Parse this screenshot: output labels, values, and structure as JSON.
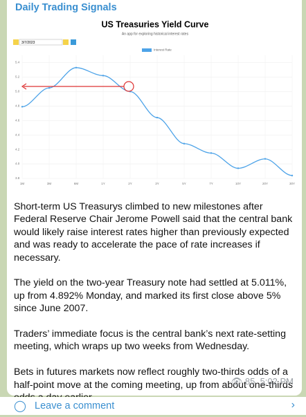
{
  "header": {
    "channel": "Daily Trading Signals"
  },
  "chart_data": {
    "type": "line",
    "title": "US Treasuries Yield Curve",
    "subtitle": "An app for exploring historical interest rates",
    "date": "3/7/2023",
    "categories": [
      "1M",
      "3M",
      "6M",
      "1Y",
      "2Y",
      "3Y",
      "5Y",
      "7Y",
      "10Y",
      "20Y",
      "30Y"
    ],
    "series": [
      {
        "name": "Interest Rate",
        "color": "#4da3e8",
        "values": [
          4.79,
          5.05,
          5.33,
          5.22,
          5.0,
          4.64,
          4.28,
          4.15,
          3.94,
          4.07,
          3.84
        ]
      }
    ],
    "ylim": [
      3.8,
      5.5
    ],
    "yticks": [
      3.8,
      {
        "value": 4,
        "label": "4.0"
      },
      4.2,
      4.4,
      4.6,
      4.8,
      {
        "value": 5,
        "label": "5.0"
      },
      5.2,
      5.4
    ],
    "grid": true
  },
  "message": {
    "paragraphs": [
      "Short-term US Treasurys climbed to new milestones after Federal Reserve Chair Jerome Powell said that the central bank would likely raise interest rates higher than previously expected and was ready to accelerate the pace of rate increases if necessary.",
      "The yield on the two-year Treasury note had settled at 5.011%, up from 4.892% Monday, and marked its first close above 5% since June 2007.",
      "Traders’ immediate focus is the central bank’s next rate-setting meeting, which wraps up two weeks from Wednesday.",
      "Bets in futures markets now reflect roughly two-thirds odds of a half-point move at the coming meeting, up from about one-thirds odds a day earlier."
    ],
    "views": "85",
    "time": "5:02 PM"
  },
  "footer": {
    "comment": "Leave a comment"
  }
}
